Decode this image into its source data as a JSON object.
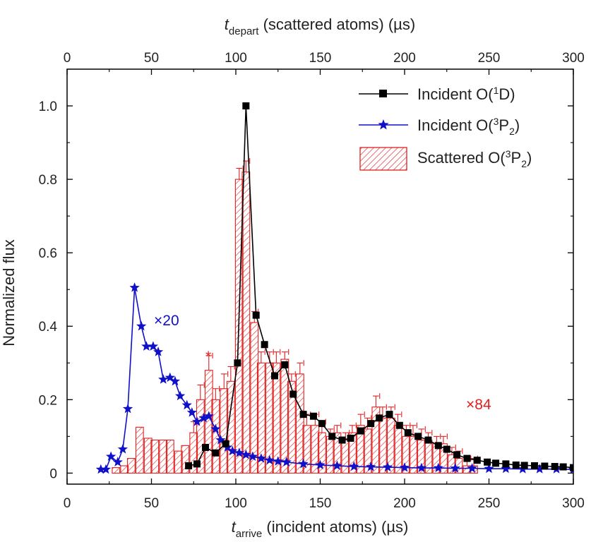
{
  "chart_data": {
    "type": "bar+line",
    "xlabel": {
      "main": "t",
      "sub": "arrive",
      "rest": " (incident atoms) (µs)"
    },
    "x2label": {
      "main": "t",
      "sub": "depart",
      "rest": " (scattered atoms) (µs)"
    },
    "ylabel": "Normalized flux",
    "xlim": [
      0,
      300
    ],
    "ylim": [
      -0.03,
      1.1
    ],
    "x_ticks": [
      0,
      50,
      100,
      150,
      200,
      250,
      300
    ],
    "x_tick_labels": [
      "0",
      "50",
      "100",
      "150",
      "200",
      "250",
      "300"
    ],
    "x2_ticks": [
      0,
      50,
      100,
      150,
      200,
      250,
      300
    ],
    "x2_tick_labels": [
      "0",
      "50",
      "100",
      "150",
      "200",
      "250",
      "300"
    ],
    "y_ticks": [
      0,
      0.2,
      0.4,
      0.6,
      0.8,
      1.0
    ],
    "y_tick_labels": [
      "0",
      "0.2",
      "0.4",
      "0.6",
      "0.8",
      "1.0"
    ],
    "grid": false,
    "legend_position": "top-right",
    "legend": [
      {
        "prefix": "Incident O(",
        "sup": "1",
        "mid": "D",
        "sub": "",
        "suffix": ")"
      },
      {
        "prefix": "Incident O(",
        "sup": "3",
        "mid": "P",
        "sub": "2",
        "suffix": ")"
      },
      {
        "prefix": "Scattered O(",
        "sup": "3",
        "mid": "P",
        "sub": "2",
        "suffix": ")"
      }
    ],
    "annotations": {
      "incident_3p2_scale": "×20",
      "scattered_scale": "×84",
      "marker_star": "*"
    },
    "colors": {
      "incident_1d": "#000000",
      "incident_3p2": "#1010c8",
      "scattered": "#e02020"
    },
    "series": [
      {
        "role": "incident_1d",
        "marker": "square",
        "points": [
          [
            72,
            0.02
          ],
          [
            77,
            0.025
          ],
          [
            82,
            0.07
          ],
          [
            88,
            0.055
          ],
          [
            94,
            0.08
          ],
          [
            101,
            0.3
          ],
          [
            106,
            1.0
          ],
          [
            112,
            0.43
          ],
          [
            117,
            0.35
          ],
          [
            123,
            0.265
          ],
          [
            129,
            0.295
          ],
          [
            134,
            0.215
          ],
          [
            140,
            0.16
          ],
          [
            146,
            0.155
          ],
          [
            151,
            0.135
          ],
          [
            157,
            0.1
          ],
          [
            163,
            0.09
          ],
          [
            168,
            0.095
          ],
          [
            174,
            0.115
          ],
          [
            180,
            0.135
          ],
          [
            185,
            0.15
          ],
          [
            191,
            0.16
          ],
          [
            197,
            0.13
          ],
          [
            202,
            0.11
          ],
          [
            208,
            0.1
          ],
          [
            214,
            0.09
          ],
          [
            220,
            0.075
          ],
          [
            225,
            0.065
          ],
          [
            231,
            0.05
          ],
          [
            237,
            0.04
          ],
          [
            243,
            0.035
          ],
          [
            249,
            0.03
          ],
          [
            254,
            0.027
          ],
          [
            260,
            0.025
          ],
          [
            266,
            0.022
          ],
          [
            271,
            0.021
          ],
          [
            277,
            0.02
          ],
          [
            283,
            0.019
          ],
          [
            289,
            0.018
          ],
          [
            294,
            0.017
          ],
          [
            300,
            0.015
          ]
        ]
      },
      {
        "role": "incident_3p2",
        "marker": "star",
        "points": [
          [
            20,
            0.01
          ],
          [
            23,
            0.01
          ],
          [
            26,
            0.045
          ],
          [
            30,
            0.03
          ],
          [
            33,
            0.065
          ],
          [
            36,
            0.175
          ],
          [
            40,
            0.505
          ],
          [
            44,
            0.4
          ],
          [
            47,
            0.345
          ],
          [
            51,
            0.345
          ],
          [
            54,
            0.33
          ],
          [
            57,
            0.255
          ],
          [
            61,
            0.26
          ],
          [
            64,
            0.25
          ],
          [
            67,
            0.21
          ],
          [
            71,
            0.185
          ],
          [
            74,
            0.165
          ],
          [
            77,
            0.14
          ],
          [
            81,
            0.15
          ],
          [
            84,
            0.155
          ],
          [
            88,
            0.12
          ],
          [
            91,
            0.09
          ],
          [
            95,
            0.07
          ],
          [
            98,
            0.06
          ],
          [
            102,
            0.055
          ],
          [
            106,
            0.05
          ],
          [
            110,
            0.045
          ],
          [
            115,
            0.04
          ],
          [
            120,
            0.035
          ],
          [
            125,
            0.032
          ],
          [
            130,
            0.03
          ],
          [
            140,
            0.025
          ],
          [
            150,
            0.022
          ],
          [
            160,
            0.02
          ],
          [
            170,
            0.018
          ],
          [
            180,
            0.017
          ],
          [
            190,
            0.016
          ],
          [
            200,
            0.015
          ],
          [
            210,
            0.014
          ],
          [
            220,
            0.014
          ],
          [
            230,
            0.013
          ],
          [
            240,
            0.013
          ],
          [
            250,
            0.012
          ],
          [
            260,
            0.012
          ],
          [
            270,
            0.011
          ],
          [
            280,
            0.011
          ],
          [
            290,
            0.011
          ],
          [
            300,
            0.01
          ]
        ]
      },
      {
        "role": "scattered",
        "bin_width": 4.5,
        "bars": [
          [
            29,
            0.015,
            0
          ],
          [
            34,
            0.02,
            0
          ],
          [
            38,
            0.04,
            0
          ],
          [
            43,
            0.125,
            0
          ],
          [
            48,
            0.095,
            0
          ],
          [
            52,
            0.09,
            0
          ],
          [
            57,
            0.09,
            0
          ],
          [
            61,
            0.09,
            0
          ],
          [
            66,
            0.06,
            0
          ],
          [
            70,
            0.075,
            0
          ],
          [
            75,
            0.11,
            0.03
          ],
          [
            79,
            0.2,
            0.04
          ],
          [
            84,
            0.28,
            0.04
          ],
          [
            88,
            0.2,
            0.03
          ],
          [
            93,
            0.23,
            0.04
          ],
          [
            97,
            0.25,
            0.04
          ],
          [
            102,
            0.8,
            0.03
          ],
          [
            106,
            0.82,
            0.03
          ],
          [
            111,
            0.41,
            0.03
          ],
          [
            115,
            0.3,
            0.03
          ],
          [
            120,
            0.3,
            0.03
          ],
          [
            124,
            0.3,
            0.03
          ],
          [
            129,
            0.31,
            0.02
          ],
          [
            133,
            0.25,
            0.02
          ],
          [
            138,
            0.27,
            0.03
          ],
          [
            142,
            0.13,
            0.03
          ],
          [
            147,
            0.13,
            0.03
          ],
          [
            151,
            0.11,
            0.03
          ],
          [
            156,
            0.1,
            0.02
          ],
          [
            160,
            0.11,
            0.02
          ],
          [
            165,
            0.09,
            0.02
          ],
          [
            169,
            0.11,
            0.02
          ],
          [
            174,
            0.13,
            0.03
          ],
          [
            178,
            0.12,
            0.03
          ],
          [
            183,
            0.18,
            0.03
          ],
          [
            187,
            0.15,
            0.03
          ],
          [
            192,
            0.15,
            0.03
          ],
          [
            196,
            0.13,
            0.03
          ],
          [
            201,
            0.1,
            0.03
          ],
          [
            205,
            0.1,
            0.03
          ],
          [
            210,
            0.09,
            0.03
          ],
          [
            214,
            0.09,
            0.02
          ],
          [
            219,
            0.08,
            0.02
          ],
          [
            223,
            0.08,
            0.02
          ],
          [
            228,
            0.05,
            0.02
          ],
          [
            232,
            0.04,
            0.02
          ],
          [
            237,
            0.02,
            0.02
          ],
          [
            241,
            0.02,
            0.02
          ]
        ]
      }
    ]
  }
}
